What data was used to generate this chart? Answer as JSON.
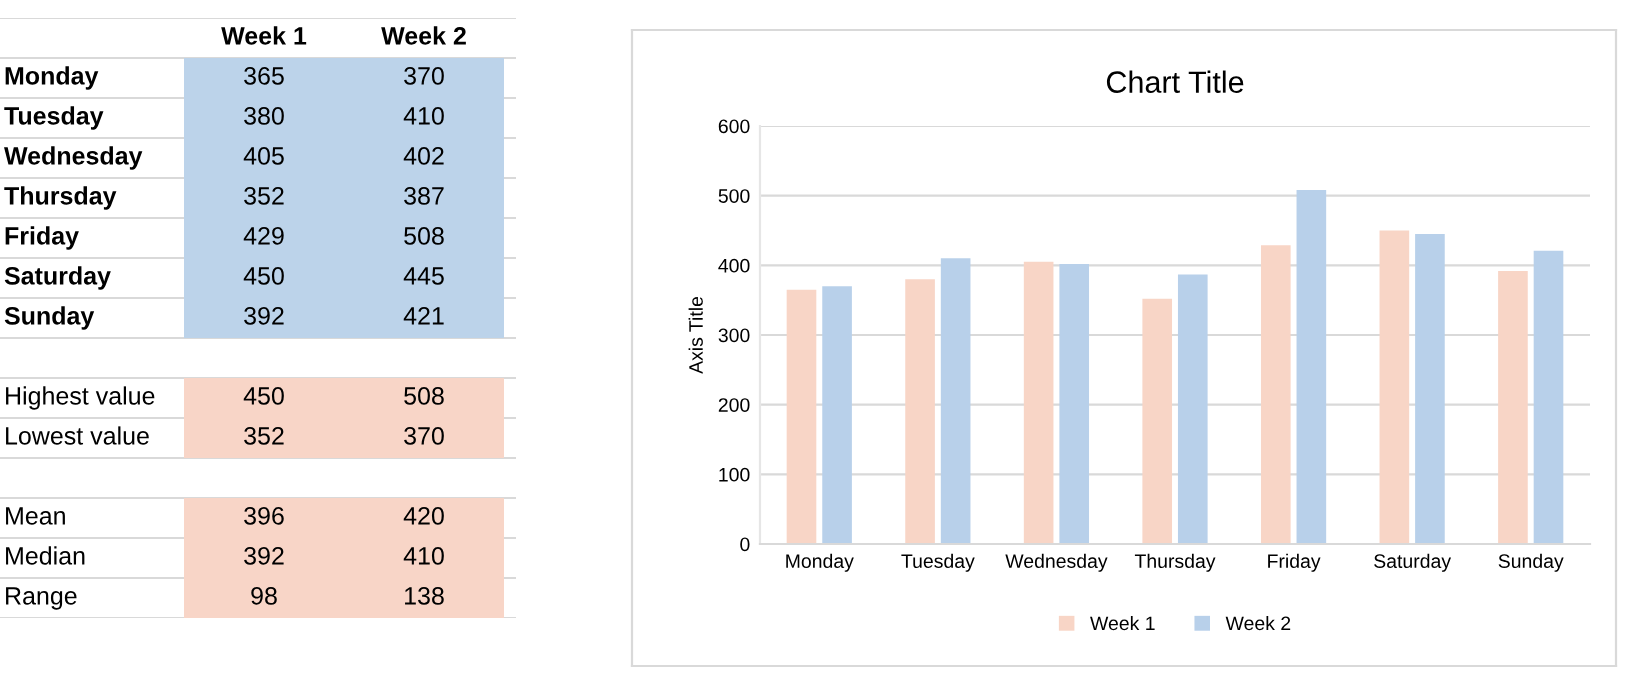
{
  "chart_data": [
    {
      "type": "other",
      "categories": [
        "Week 1",
        "Week 2"
      ],
      "y_categories": [
        "Monday",
        "Tuesday",
        "Wednesday",
        "Thursday",
        "Friday",
        "Saturday",
        "Sunday",
        null,
        "Highest value",
        "Lowest value",
        null,
        "Mean",
        "Median",
        "Range"
      ],
      "cell_labels": [
        [
          "365",
          "370"
        ],
        [
          "380",
          "410"
        ],
        [
          "405",
          "402"
        ],
        [
          "352",
          "387"
        ],
        [
          "429",
          "508"
        ],
        [
          "450",
          "445"
        ],
        [
          "392",
          "421"
        ],
        [
          null,
          null
        ],
        [
          "450",
          "508"
        ],
        [
          "352",
          "370"
        ],
        [
          null,
          null
        ],
        [
          "396",
          "420"
        ],
        [
          "392",
          "410"
        ],
        [
          "98",
          "138"
        ]
      ],
      "colors": [
        "#bcd3ea",
        "#bcd3ea",
        "#bcd3ea",
        "#bcd3ea",
        "#bcd3ea",
        "#bcd3ea",
        "#bcd3ea",
        null,
        "#f8d5c7",
        "#f8d5c7",
        null,
        "#f8d5c7",
        "#f8d5c7",
        "#f8d5c7"
      ]
    },
    {
      "type": "bar",
      "title": "Chart Title",
      "ylabel": "Axis Title",
      "categories": [
        "Monday",
        "Tuesday",
        "Wednesday",
        "Thursday",
        "Friday",
        "Saturday",
        "Sunday"
      ],
      "series": [
        {
          "name": "Week 1",
          "color": "#f8d5c6",
          "values": [
            365,
            380,
            405,
            352,
            429,
            450,
            392
          ]
        },
        {
          "name": "Week 2",
          "color": "#b8d0ea",
          "values": [
            370,
            410,
            402,
            387,
            508,
            445,
            421
          ]
        }
      ],
      "ylim": [
        0,
        600
      ],
      "yticks": [
        0,
        100,
        200,
        300,
        400,
        500,
        600
      ],
      "grid": "y",
      "legend": "bottom"
    }
  ]
}
